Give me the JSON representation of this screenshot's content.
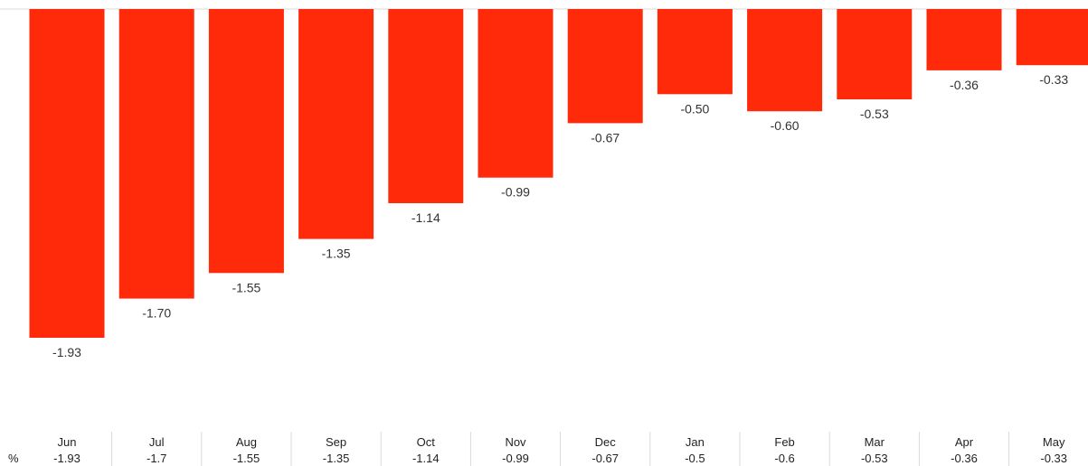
{
  "chart_data": {
    "type": "bar",
    "categories": [
      "Jun",
      "Jul",
      "Aug",
      "Sep",
      "Oct",
      "Nov",
      "Dec",
      "Jan",
      "Feb",
      "Mar",
      "Apr",
      "May"
    ],
    "values": [
      -1.93,
      -1.7,
      -1.55,
      -1.35,
      -1.14,
      -0.99,
      -0.67,
      -0.5,
      -0.6,
      -0.53,
      -0.36,
      -0.33
    ],
    "data_labels": [
      "-1.93",
      "-1.70",
      "-1.55",
      "-1.35",
      "-1.14",
      "-0.99",
      "-0.67",
      "-0.50",
      "-0.60",
      "-0.53",
      "-0.36",
      "-0.33"
    ],
    "table_row_label": "%",
    "table_values": [
      "-1.93",
      "-1.7",
      "-1.55",
      "-1.35",
      "-1.14",
      "-0.99",
      "-0.67",
      "-0.5",
      "-0.6",
      "-0.53",
      "-0.36",
      "-0.33"
    ],
    "ylim": [
      -2.0,
      0
    ],
    "bar_color": "#ff2a0a",
    "grid": false,
    "legend": "none"
  }
}
